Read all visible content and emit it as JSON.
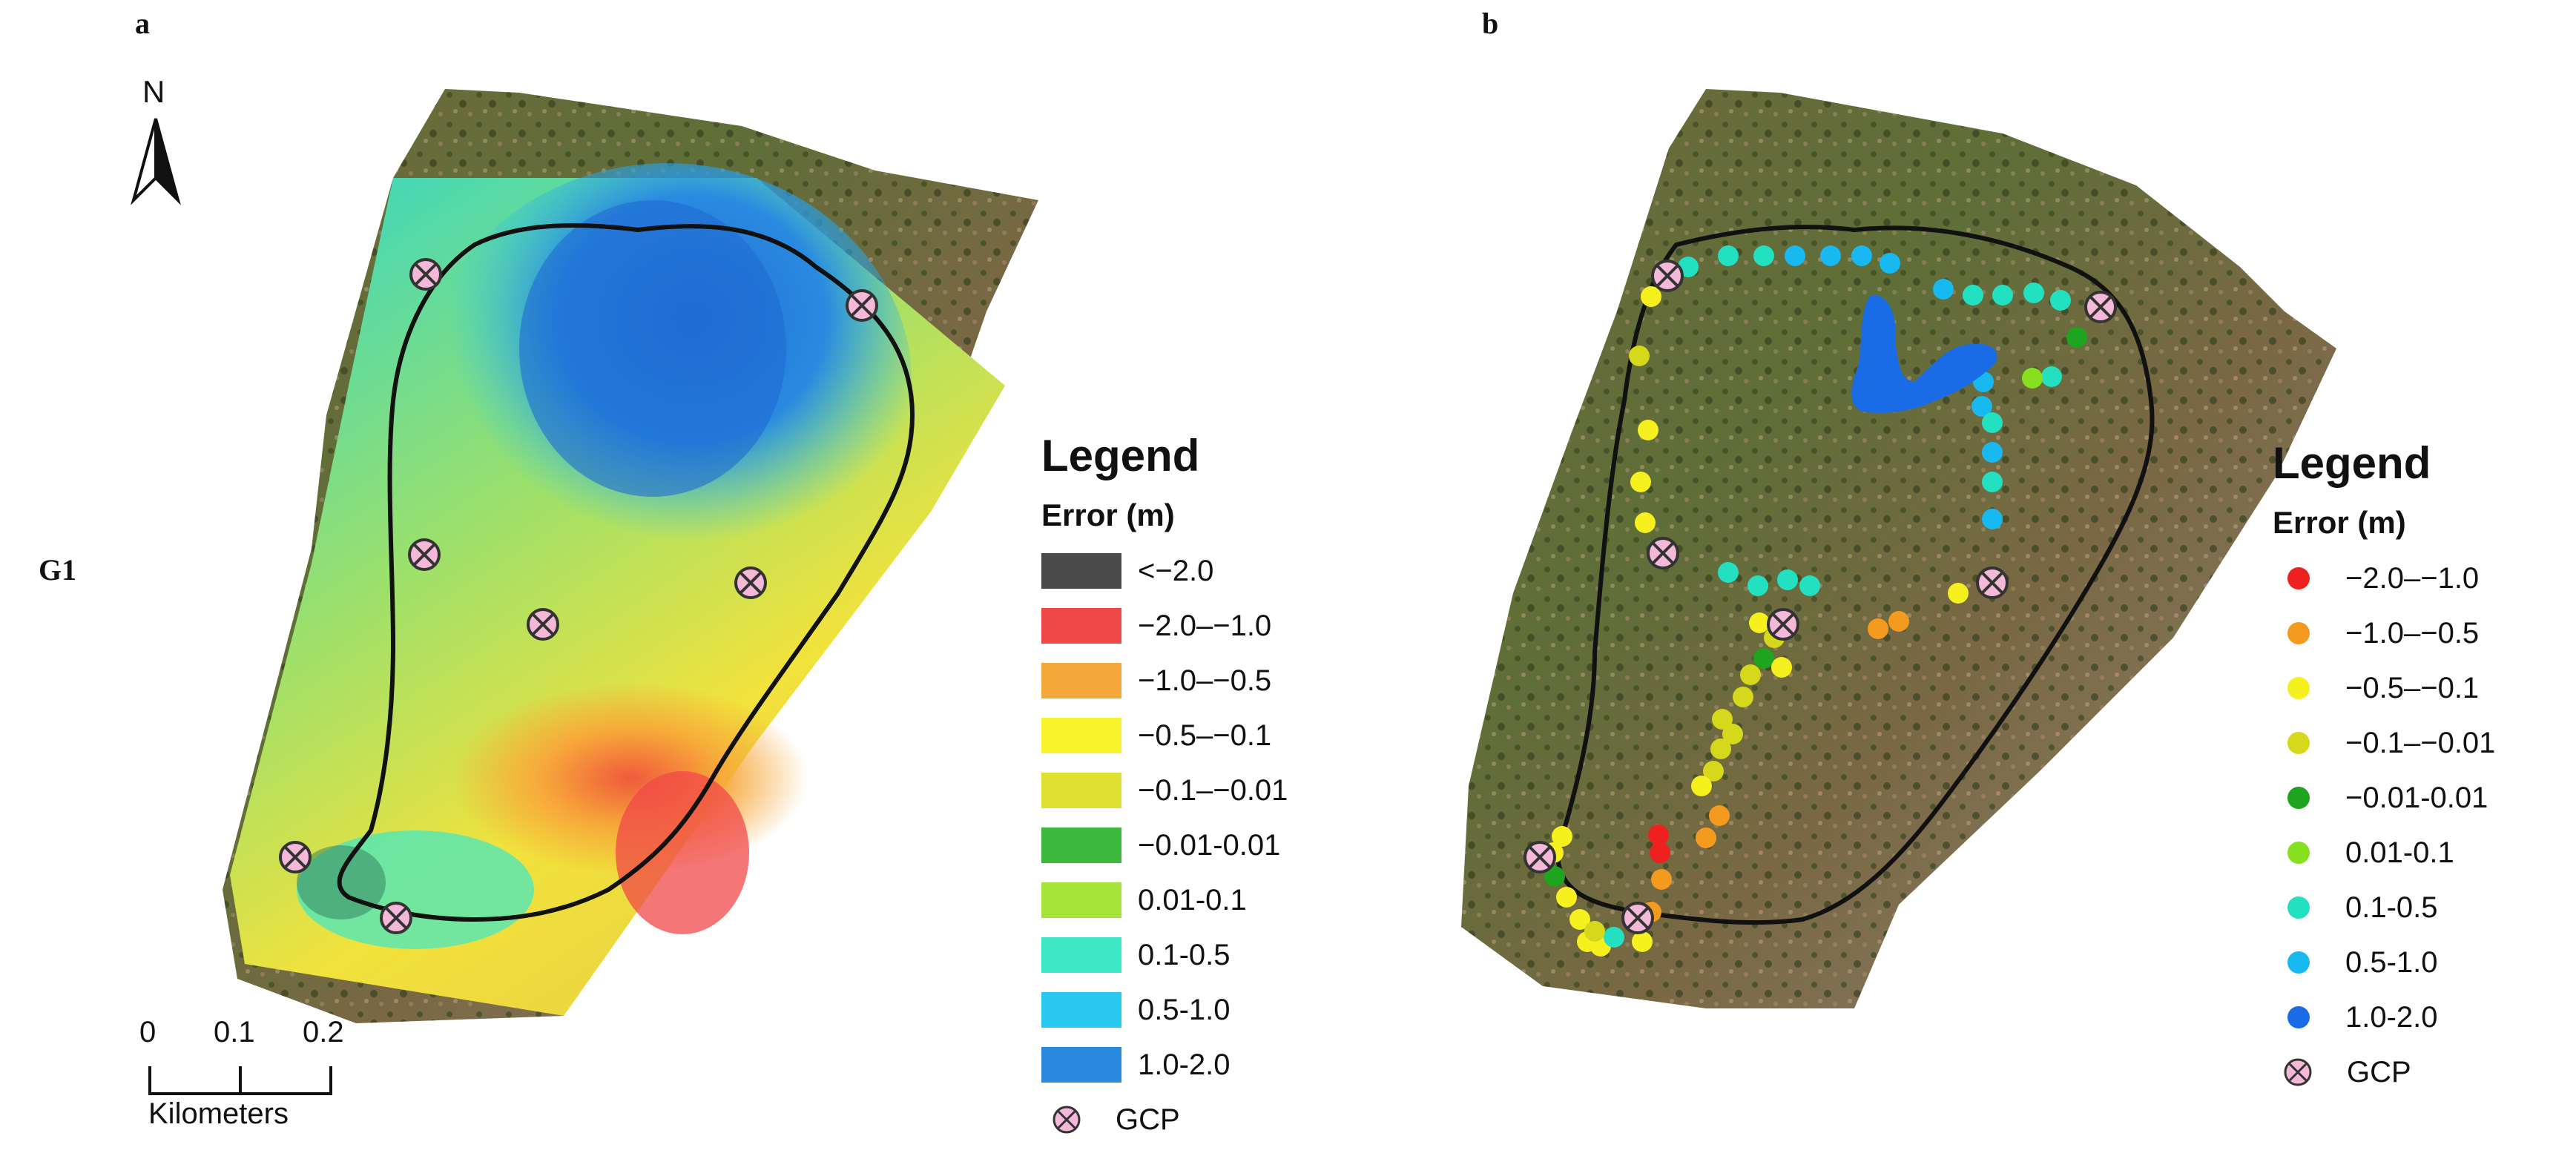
{
  "panels": {
    "a": {
      "letter": "a"
    },
    "b": {
      "letter": "b"
    }
  },
  "row_label": "G1",
  "north_arrow": {
    "letter": "N",
    "icon": "north-arrow-icon"
  },
  "scale_bar": {
    "ticks": [
      "0",
      "0.1",
      "0.2"
    ],
    "units": "Kilometers"
  },
  "legend_a": {
    "title": "Legend",
    "subtitle": "Error (m)",
    "items": [
      {
        "label": "<−2.0",
        "color": "#4a4a4a"
      },
      {
        "label": "−2.0–−1.0",
        "color": "#f04848"
      },
      {
        "label": "−1.0–−0.5",
        "color": "#f7a83a"
      },
      {
        "label": "−0.5–−0.1",
        "color": "#f8f32a"
      },
      {
        "label": "−0.1–−0.01",
        "color": "#e0e033"
      },
      {
        "label": "−0.01-0.01",
        "color": "#3cb83c"
      },
      {
        "label": "0.01-0.1",
        "color": "#a6e43a"
      },
      {
        "label": "0.1-0.5",
        "color": "#3ce8c8"
      },
      {
        "label": "0.5-1.0",
        "color": "#28c8f0"
      },
      {
        "label": "1.0-2.0",
        "color": "#2a8ae0"
      }
    ],
    "gcp_label": "GCP"
  },
  "legend_b": {
    "title": "Legend",
    "subtitle": "Error (m)",
    "items": [
      {
        "label": "−2.0–−1.0",
        "color": "#ee2020"
      },
      {
        "label": "−1.0–−0.5",
        "color": "#f49a1e"
      },
      {
        "label": "−0.5–−0.1",
        "color": "#f6f01e"
      },
      {
        "label": "−0.1–−0.01",
        "color": "#d6d81c"
      },
      {
        "label": "−0.01-0.01",
        "color": "#1ea41e"
      },
      {
        "label": "0.01-0.1",
        "color": "#86e01e"
      },
      {
        "label": "0.1-0.5",
        "color": "#22e0c0"
      },
      {
        "label": "0.5-1.0",
        "color": "#18b8f0"
      },
      {
        "label": "1.0-2.0",
        "color": "#1a6ce6"
      }
    ],
    "gcp_label": "GCP"
  },
  "gcp_style": {
    "fill": "#f4b8d8",
    "stroke": "#333333"
  }
}
